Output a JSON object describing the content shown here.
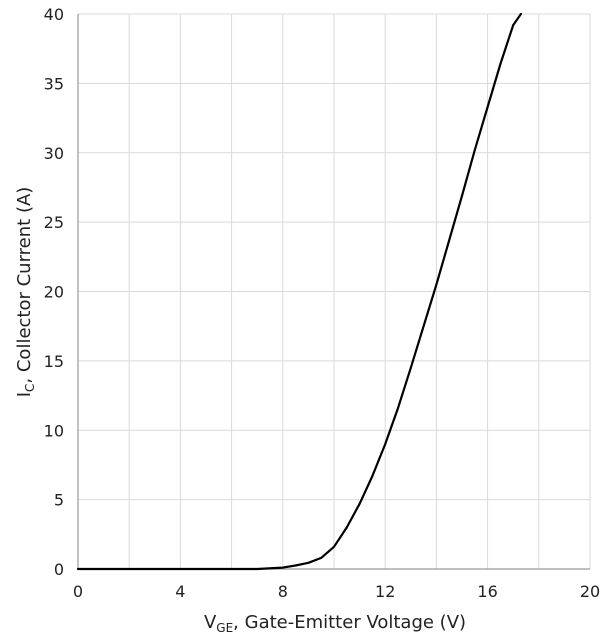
{
  "chart_data": {
    "type": "line",
    "title": "",
    "xlabel": {
      "main": "V",
      "sub": "GE",
      "rest": ", Gate-Emitter Voltage (V)"
    },
    "ylabel": {
      "main": "I",
      "sub": "C",
      "rest": ", Collector Current (A)"
    },
    "xlim": [
      0,
      20
    ],
    "ylim": [
      0,
      40
    ],
    "xticks": [
      0,
      4,
      8,
      12,
      16,
      20
    ],
    "yticks": [
      0,
      5,
      10,
      15,
      20,
      25,
      30,
      35,
      40
    ],
    "x_minor_grid_step": 2,
    "grid": true,
    "legend": "none",
    "colors": {
      "line": "#000000",
      "grid": "#d9d9d9",
      "axis": "#999999"
    },
    "series": [
      {
        "points": [
          [
            0,
            0
          ],
          [
            7,
            0
          ],
          [
            8,
            0.1
          ],
          [
            8.5,
            0.25
          ],
          [
            9,
            0.45
          ],
          [
            9.5,
            0.8
          ],
          [
            10,
            1.6
          ],
          [
            10.5,
            3.0
          ],
          [
            11,
            4.7
          ],
          [
            11.5,
            6.7
          ],
          [
            12,
            9.0
          ],
          [
            12.5,
            11.6
          ],
          [
            13,
            14.5
          ],
          [
            13.5,
            17.5
          ],
          [
            14,
            20.5
          ],
          [
            14.5,
            23.7
          ],
          [
            15,
            26.9
          ],
          [
            15.5,
            30.2
          ],
          [
            16,
            33.3
          ],
          [
            16.5,
            36.4
          ],
          [
            17,
            39.2
          ],
          [
            17.3,
            40.0
          ]
        ]
      }
    ]
  }
}
